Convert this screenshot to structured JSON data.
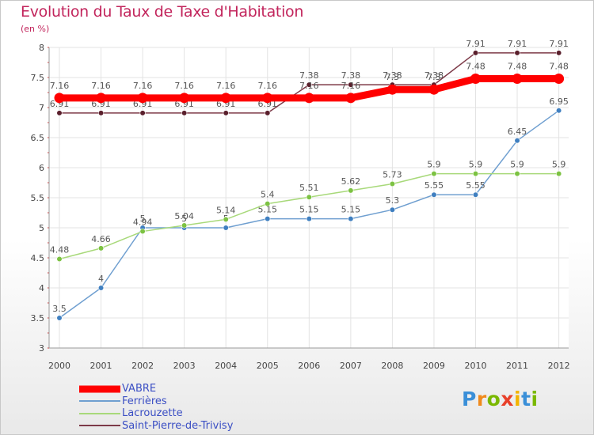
{
  "title": "Evolution du Taux de Taxe d'Habitation",
  "subtitle": "(en %)",
  "logo": {
    "letters": [
      "P",
      "r",
      "o",
      "x",
      "i",
      "t",
      "i"
    ],
    "colors": [
      "#3a8fd8",
      "#f08a1c",
      "#7ab800",
      "#e8402a",
      "#f3b400",
      "#3a8fd8",
      "#7ab800"
    ]
  },
  "colors": {
    "title": "#c2255c",
    "axis_text": "#444444",
    "legend_text": "#3b4fc4",
    "vabre": "#ff0000",
    "ferrieres": "#6f9fd0",
    "lacrouzette": "#a8d97a",
    "saint_pierre": "#7d3a48"
  },
  "chart_data": {
    "type": "line",
    "title": "Evolution du Taux de Taxe d'Habitation",
    "ylabel": "(en %)",
    "x": [
      2000,
      2001,
      2002,
      2003,
      2004,
      2005,
      2006,
      2007,
      2008,
      2009,
      2010,
      2011,
      2012
    ],
    "x_tick_labels": [
      "2000",
      "2001",
      "2002",
      "2003",
      "2004",
      "2005",
      "2006",
      "2007",
      "2008",
      "2009",
      "2010",
      "2011",
      "2012"
    ],
    "ylim": [
      3,
      8
    ],
    "y_ticks": [
      3,
      3.5,
      4,
      4.5,
      5,
      5.5,
      6,
      6.5,
      7,
      7.5,
      8
    ],
    "y_tick_labels": [
      "3",
      "3.5",
      "4",
      "4.5",
      "5",
      "5.5",
      "6",
      "6.5",
      "7",
      "7.5",
      "8"
    ],
    "grid": true,
    "legend_position": "bottom-left",
    "series": [
      {
        "name": "VABRE",
        "color": "#ff0000",
        "style": "thick",
        "values": [
          7.16,
          7.16,
          7.16,
          7.16,
          7.16,
          7.16,
          7.16,
          7.16,
          7.3,
          7.3,
          7.48,
          7.48,
          7.48
        ],
        "labels": [
          "7.16",
          "7.16",
          "7.16",
          "7.16",
          "7.16",
          "7.16",
          "7.16",
          "7.16",
          "7.3",
          "7.3",
          "7.48",
          "7.48",
          "7.48"
        ]
      },
      {
        "name": "Ferrières",
        "color": "#6f9fd0",
        "marker": "#3f7fc0",
        "style": "thin",
        "values": [
          3.5,
          4,
          5,
          5,
          5,
          5.15,
          5.15,
          5.15,
          5.3,
          5.55,
          5.55,
          6.45,
          6.95
        ],
        "labels": [
          "3.5",
          "4",
          "5",
          "5",
          "5",
          "5.15",
          "5.15",
          "5.15",
          "5.3",
          "5.55",
          "5.55",
          "6.45",
          "6.95"
        ]
      },
      {
        "name": "Lacrouzette",
        "color": "#a8d97a",
        "marker": "#7cc242",
        "style": "thin",
        "values": [
          4.48,
          4.66,
          4.94,
          5.04,
          5.14,
          5.4,
          5.51,
          5.62,
          5.73,
          5.9,
          5.9,
          5.9,
          5.9
        ],
        "labels": [
          "4.48",
          "4.66",
          "4.94",
          "5.04",
          "5.14",
          "5.4",
          "5.51",
          "5.62",
          "5.73",
          "5.9",
          "5.9",
          "5.9",
          "5.9"
        ]
      },
      {
        "name": "Saint-Pierre-de-Trivisy",
        "color": "#7d3a48",
        "marker": "#5a1f2c",
        "style": "thin",
        "values": [
          6.91,
          6.91,
          6.91,
          6.91,
          6.91,
          6.91,
          7.38,
          7.38,
          7.38,
          7.38,
          7.91,
          7.91,
          7.91
        ],
        "labels": [
          "6.91",
          "6.91",
          "6.91",
          "6.91",
          "6.91",
          "6.91",
          "7.38",
          "7.38",
          "7.38",
          "7.38",
          "7.91",
          "7.91",
          "7.91"
        ]
      }
    ]
  }
}
